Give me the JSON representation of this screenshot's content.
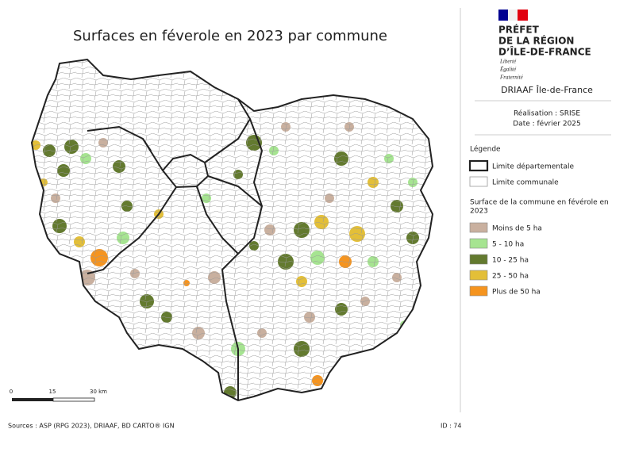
{
  "title": "Surfaces en féverole en 2023 par commune",
  "header": {
    "prefet": [
      "PRÉFET",
      "DE LA RÉGION",
      "D’ÎLE-DE-FRANCE"
    ],
    "devise": [
      "Liberté",
      "Égalité",
      "Fraternité"
    ],
    "service": "DRIAAF Île-de-France",
    "realisation": "Réalisation : SRISE",
    "date": "Date : février 2025"
  },
  "legend": {
    "title": "Légende",
    "limits": [
      {
        "label": "Limite départementale",
        "stroke": "#222222",
        "width": 2.2
      },
      {
        "label": "Limite communale",
        "stroke": "#999999",
        "width": 0.8
      }
    ],
    "subtitle": "Surface de la commune en févérole en 2023",
    "classes": [
      {
        "label": "Moins de 5 ha",
        "color": "#c9b09f"
      },
      {
        "label": "5 - 10 ha",
        "color": "#a6e491"
      },
      {
        "label": "10 - 25 ha",
        "color": "#637a2f"
      },
      {
        "label": "25 - 50 ha",
        "color": "#e3bf38"
      },
      {
        "label": "Plus de 50 ha",
        "color": "#f5941f"
      }
    ]
  },
  "scale": [
    "0",
    "15",
    "30 km"
  ],
  "footer": {
    "sources": "Sources : ASP (RPG 2023), DRIAAF, BD CARTO® IGN",
    "id": "ID : 74"
  }
}
